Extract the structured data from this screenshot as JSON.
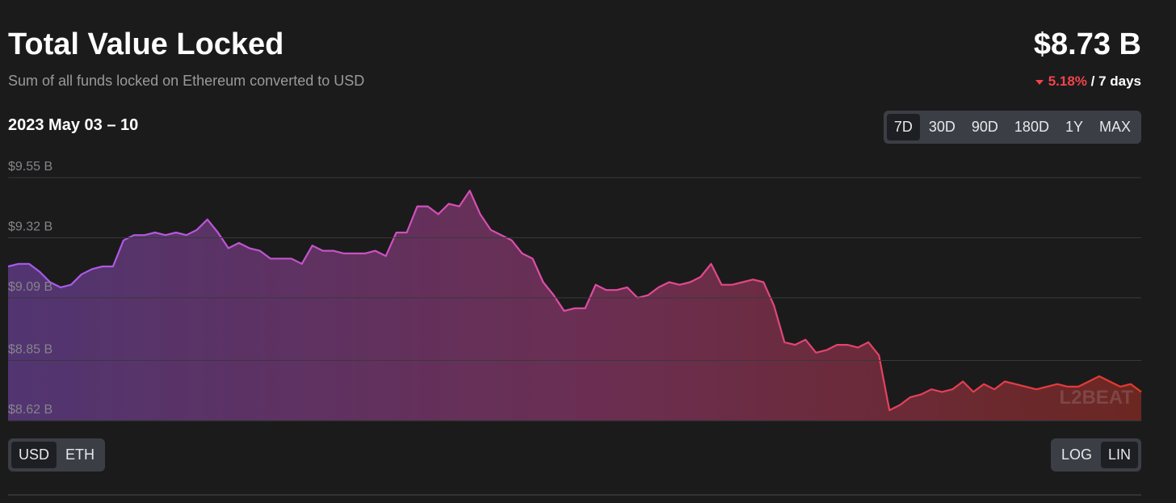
{
  "header": {
    "value": "$8.73 B",
    "change": "5.18%",
    "period": "/ 7 days",
    "date_range": "2023 May 03 – 10"
  },
  "range_buttons": [
    "7D",
    "30D",
    "90D",
    "180D",
    "1Y",
    "MAX"
  ],
  "currency_buttons": [
    "USD",
    "ETH"
  ],
  "scale_buttons": [
    "LOG",
    "LIN"
  ],
  "watermark": "L2BEAT",
  "chart_data": {
    "type": "line",
    "title": "Total Value Locked",
    "subtitle": "Sum of all funds locked on Ethereum converted to USD",
    "gradient": [
      "#a35cf0",
      "#e24ca6",
      "#e4392a"
    ],
    "ylim": [
      8.62,
      9.55
    ],
    "yticks": [
      {
        "value": 9.55,
        "label": "$9.55 B"
      },
      {
        "value": 9.32,
        "label": "$9.32 B"
      },
      {
        "value": 9.09,
        "label": "$9.09 B"
      },
      {
        "value": 8.85,
        "label": "$8.85 B"
      },
      {
        "value": 8.62,
        "label": "$8.62 B"
      }
    ],
    "grid": true,
    "values": [
      9.21,
      9.22,
      9.22,
      9.19,
      9.15,
      9.13,
      9.14,
      9.18,
      9.2,
      9.21,
      9.21,
      9.31,
      9.33,
      9.33,
      9.34,
      9.33,
      9.34,
      9.33,
      9.35,
      9.39,
      9.34,
      9.28,
      9.3,
      9.28,
      9.27,
      9.24,
      9.24,
      9.24,
      9.22,
      9.29,
      9.27,
      9.27,
      9.26,
      9.26,
      9.26,
      9.27,
      9.25,
      9.34,
      9.34,
      9.44,
      9.44,
      9.41,
      9.45,
      9.44,
      9.5,
      9.41,
      9.35,
      9.33,
      9.31,
      9.26,
      9.24,
      9.15,
      9.1,
      9.04,
      9.05,
      9.05,
      9.14,
      9.12,
      9.12,
      9.13,
      9.09,
      9.1,
      9.13,
      9.15,
      9.14,
      9.15,
      9.17,
      9.22,
      9.14,
      9.14,
      9.15,
      9.16,
      9.15,
      9.06,
      8.92,
      8.91,
      8.93,
      8.88,
      8.89,
      8.91,
      8.91,
      8.9,
      8.92,
      8.87,
      8.66,
      8.68,
      8.71,
      8.72,
      8.74,
      8.73,
      8.74,
      8.77,
      8.73,
      8.76,
      8.74,
      8.77,
      8.76,
      8.75,
      8.74,
      8.75,
      8.76,
      8.75,
      8.75,
      8.77,
      8.79,
      8.77,
      8.75,
      8.76,
      8.73
    ]
  }
}
